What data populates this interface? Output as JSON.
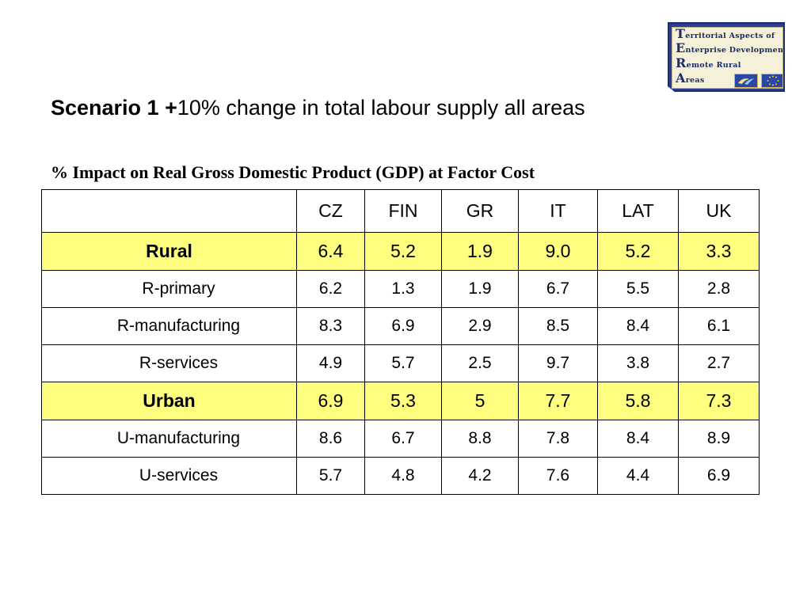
{
  "logo": {
    "lines": [
      {
        "cap": "T",
        "rest": "erritorial Aspects of"
      },
      {
        "cap": "E",
        "rest": "nterprise Development in"
      },
      {
        "cap": "R",
        "rest": "emote Rural"
      },
      {
        "cap": "A",
        "rest": "reas"
      }
    ]
  },
  "title": {
    "bold": "Scenario  1 +",
    "rest": "10%  change in total labour supply  all areas"
  },
  "subtitle": "% Impact on Real Gross Domestic Product (GDP) at Factor Cost",
  "table": {
    "corner": "",
    "columns": [
      "CZ",
      "FIN",
      "GR",
      "IT",
      "LAT",
      "UK"
    ],
    "rows": [
      {
        "label": "Rural",
        "type": "group",
        "values": [
          "6.4",
          "5.2",
          "1.9",
          "9.0",
          "5.2",
          "3.3"
        ]
      },
      {
        "label": "R-primary",
        "type": "sub",
        "values": [
          "6.2",
          "1.3",
          "1.9",
          "6.7",
          "5.5",
          "2.8"
        ]
      },
      {
        "label": "R-manufacturing",
        "type": "sub",
        "values": [
          "8.3",
          "6.9",
          "2.9",
          "8.5",
          "8.4",
          "6.1"
        ]
      },
      {
        "label": "R-services",
        "type": "sub",
        "values": [
          "4.9",
          "5.7",
          "2.5",
          "9.7",
          "3.8",
          "2.7"
        ]
      },
      {
        "label": "Urban",
        "type": "group",
        "values": [
          "6.9",
          "5.3",
          "5",
          "7.7",
          "5.8",
          "7.3"
        ]
      },
      {
        "label": "U-manufacturing",
        "type": "sub",
        "values": [
          "8.6",
          "6.7",
          "8.8",
          "7.8",
          "8.4",
          "8.9"
        ]
      },
      {
        "label": "U-services",
        "type": "sub",
        "values": [
          "5.7",
          "4.8",
          "4.2",
          "7.6",
          "4.4",
          "6.9"
        ]
      }
    ]
  },
  "colors": {
    "highlight_row": "#ffff7f",
    "logo_frame": "#2b3f92",
    "logo_text": "#1b2b6b"
  }
}
